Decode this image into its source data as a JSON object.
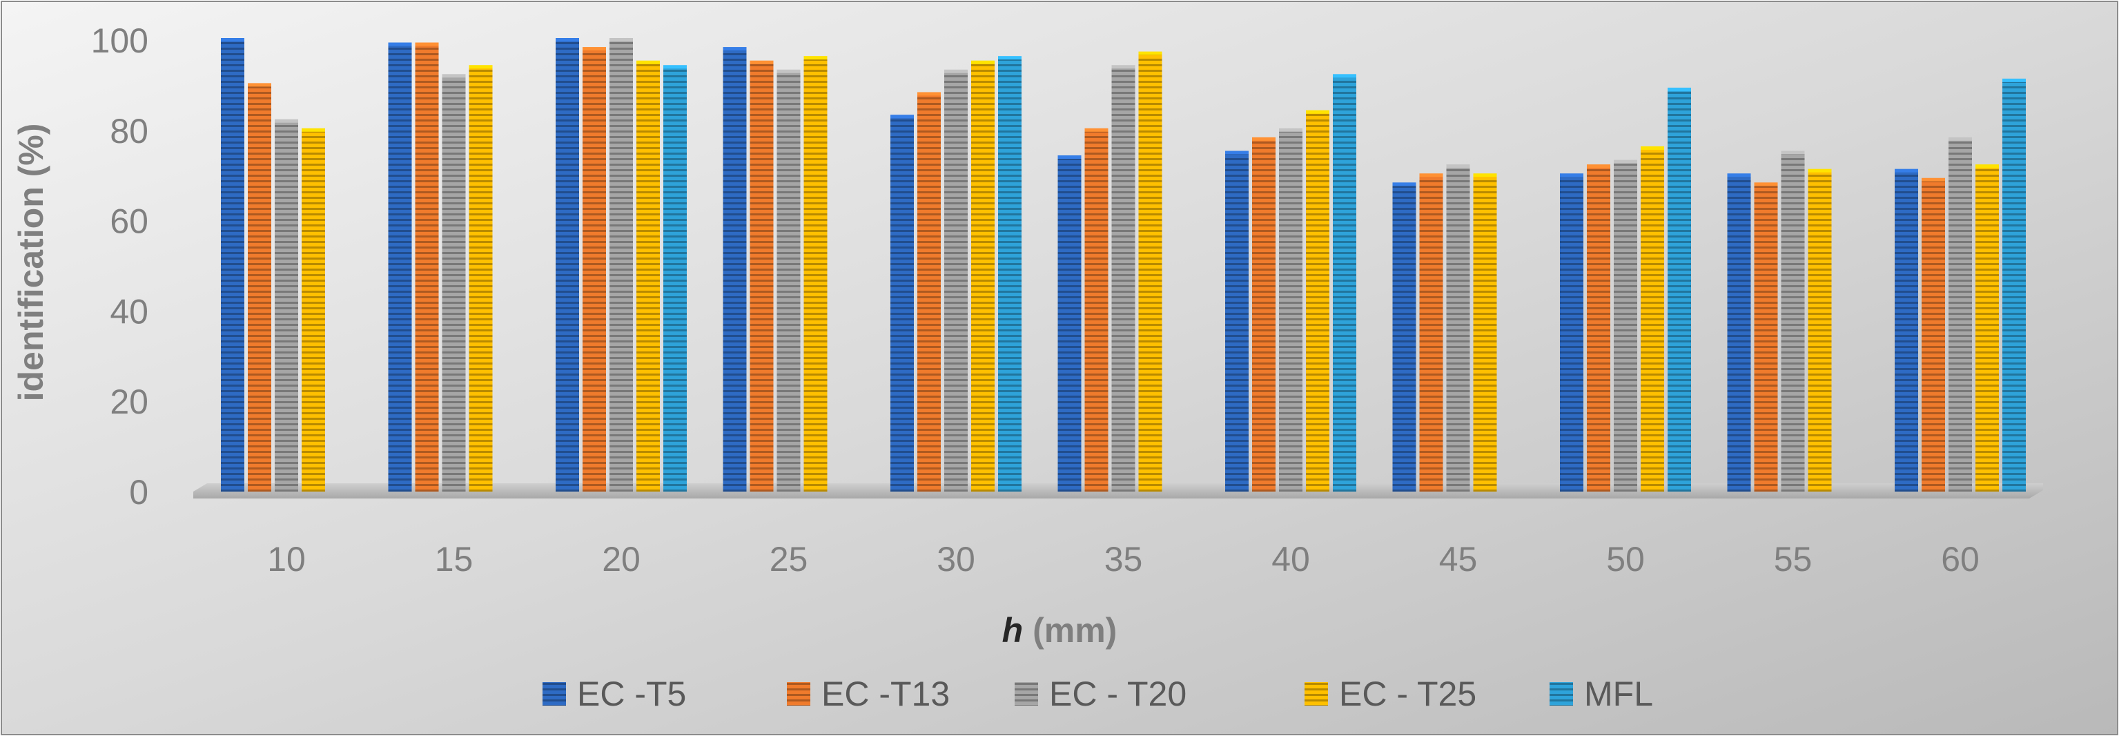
{
  "chart_data": {
    "type": "bar",
    "title": "",
    "xlabel_italic": "h",
    "xlabel_rest": " (mm)",
    "ylabel": "identification (%)",
    "ylim": [
      0,
      100
    ],
    "yticks": [
      0,
      20,
      40,
      60,
      80,
      100
    ],
    "grid": false,
    "legend_position": "bottom",
    "categories": [
      "10",
      "15",
      "20",
      "25",
      "30",
      "35",
      "40",
      "45",
      "50",
      "55",
      "60"
    ],
    "series": [
      {
        "name": "EC -T5",
        "color": "#2E6BC4",
        "values": [
          100,
          99,
          100,
          98,
          83,
          74,
          75,
          68,
          70,
          70,
          71
        ]
      },
      {
        "name": "EC -T13",
        "color": "#F07B2C",
        "values": [
          90,
          99,
          98,
          95,
          88,
          80,
          78,
          70,
          72,
          68,
          69
        ]
      },
      {
        "name": "EC - T20",
        "color": "#A6A6A6",
        "values": [
          82,
          92,
          100,
          93,
          93,
          94,
          80,
          72,
          73,
          75,
          78
        ]
      },
      {
        "name": "EC - T25",
        "color": "#FFC000",
        "values": [
          80,
          94,
          95,
          96,
          95,
          97,
          84,
          70,
          76,
          71,
          72
        ]
      },
      {
        "name": "MFL",
        "color": "#2EA3DA",
        "values": [
          null,
          null,
          94,
          null,
          96,
          null,
          92,
          null,
          89,
          null,
          91
        ]
      }
    ]
  }
}
